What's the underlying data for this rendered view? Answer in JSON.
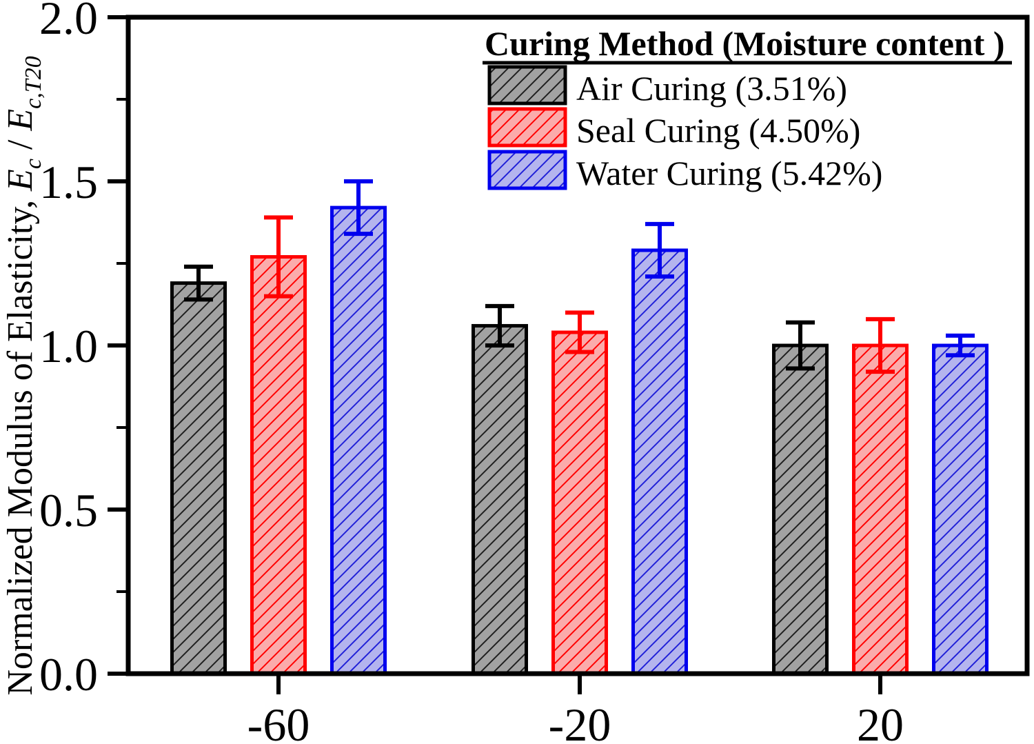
{
  "figure": {
    "background": "#ffffff",
    "axis_color": "#000000"
  },
  "chart_data": {
    "type": "bar",
    "title": "",
    "xlabel": "",
    "ylabel": "Normalized Modulus of Elasticity, Ec / Ec,T20",
    "ylabel_parts": {
      "prefix": "Normalized Modulus of Elasticity, ",
      "E1": "E",
      "sub1": "c",
      "mid": " / ",
      "E2": "E",
      "sub2": "c,T20"
    },
    "categories": [
      "-60",
      "-20",
      "20"
    ],
    "ylim": [
      0.0,
      2.0
    ],
    "ytick_major": [
      0.0,
      0.5,
      1.0,
      1.5,
      2.0
    ],
    "ytick_labels": [
      "0.0",
      "0.5",
      "1.0",
      "1.5",
      "2.0"
    ],
    "ytick_minor": [
      0.25,
      0.75,
      1.25,
      1.75
    ],
    "grid": "off",
    "legend": {
      "title": "Curing Method (Moisture content )",
      "position": "top-right"
    },
    "series": [
      {
        "id": "air",
        "name": "Air Curing (3.51%)",
        "values": [
          1.19,
          1.06,
          1.0
        ],
        "errors": [
          0.05,
          0.06,
          0.07
        ],
        "fill": "#a2a2a2",
        "hatch": "#1f1f1f",
        "edge": "#000000"
      },
      {
        "id": "seal",
        "name": "Seal Curing (4.50%)",
        "values": [
          1.27,
          1.04,
          1.0
        ],
        "errors": [
          0.12,
          0.06,
          0.08
        ],
        "fill": "#fbabab",
        "hatch": "#ff0000",
        "edge": "#ff0000"
      },
      {
        "id": "water",
        "name": "Water Curing (5.42%)",
        "values": [
          1.42,
          1.29,
          1.0
        ],
        "errors": [
          0.08,
          0.08,
          0.03
        ],
        "fill": "#b4b4ee",
        "hatch": "#2121d8",
        "edge": "#0000ee"
      }
    ]
  }
}
